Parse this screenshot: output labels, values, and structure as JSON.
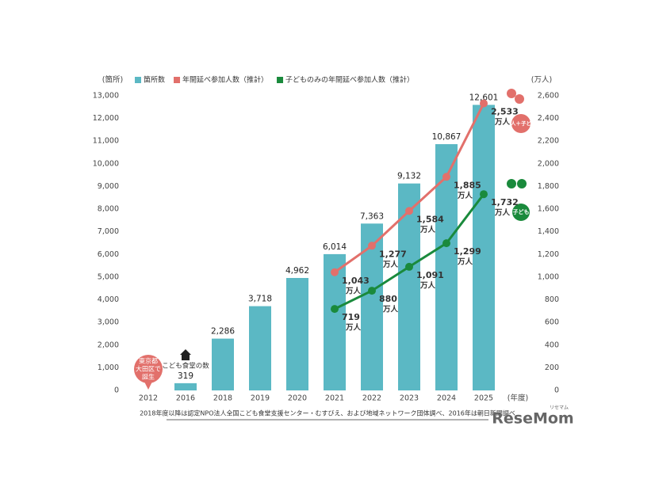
{
  "chart_data": {
    "type": "bar",
    "y_label": "(箇所)",
    "y2_label": "(万人)",
    "x_label": "(年度)",
    "categories": [
      "2012",
      "2016",
      "2018",
      "2019",
      "2020",
      "2021",
      "2022",
      "2023",
      "2024",
      "2025"
    ],
    "series": [
      {
        "name": "箇所数",
        "color": "#5bb8c4",
        "values": [
          null,
          319,
          2286,
          3718,
          4962,
          6014,
          7363,
          9132,
          10867,
          12601
        ],
        "value_labels": [
          null,
          "319",
          "2,286",
          "3,718",
          "4,962",
          "6,014",
          "7,363",
          "9,132",
          "10,867",
          "12,601"
        ]
      },
      {
        "name": "年間延べ参加人数（推計）",
        "type": "line",
        "axis": "y2",
        "color": "#e2706b",
        "values": [
          null,
          null,
          null,
          null,
          null,
          1043,
          1277,
          1584,
          1885,
          2533
        ],
        "value_labels": [
          null,
          null,
          null,
          null,
          null,
          "1,043",
          "1,277",
          "1,584",
          "1,885",
          "2,533"
        ]
      },
      {
        "name": "子どものみの年間延べ参加人数（推計）",
        "type": "line",
        "axis": "y2",
        "color": "#1a8a3c",
        "values": [
          null,
          null,
          null,
          null,
          null,
          719,
          880,
          1091,
          1299,
          1732
        ],
        "value_labels": [
          null,
          null,
          null,
          null,
          null,
          "719",
          "880",
          "1,091",
          "1,299",
          "1,732"
        ]
      }
    ],
    "value_unit": "万人",
    "ylim": [
      0,
      13000
    ],
    "yticks": [
      0,
      {
        "value": 1000,
        "label": "1,000"
      },
      {
        "value": 2000,
        "label": "2,000"
      },
      {
        "value": 3000,
        "label": "3,000"
      },
      {
        "value": 4000,
        "label": "4,000"
      },
      {
        "value": 5000,
        "label": "5,000"
      },
      {
        "value": 6000,
        "label": "6,000"
      },
      {
        "value": 7000,
        "label": "7,000"
      },
      {
        "value": 8000,
        "label": "8,000"
      },
      {
        "value": 9000,
        "label": "9,000"
      },
      {
        "value": 10000,
        "label": "10,000"
      },
      {
        "value": 11000,
        "label": "11,000"
      },
      {
        "value": 12000,
        "label": "12,000"
      },
      {
        "value": 13000,
        "label": "13,000"
      }
    ],
    "y2lim": [
      0,
      2600
    ],
    "y2ticks": [
      0,
      200,
      400,
      600,
      800,
      {
        "value": 1000,
        "label": "1,000"
      },
      {
        "value": 1200,
        "label": "1,200"
      },
      {
        "value": 1400,
        "label": "1,400"
      },
      {
        "value": 1600,
        "label": "1,600"
      },
      {
        "value": 1800,
        "label": "1,800"
      },
      {
        "value": 2000,
        "label": "2,000"
      },
      {
        "value": 2200,
        "label": "2,200"
      },
      {
        "value": 2400,
        "label": "2,400"
      },
      {
        "value": 2600,
        "label": "2,600"
      }
    ],
    "annotations": {
      "birth": [
        "東京都",
        "大田区で",
        "誕生"
      ],
      "count_note": "こども食堂の数",
      "badge_adult": "大人＋子ども",
      "badge_child": "子ども"
    },
    "source": "2018年度以降は認定NPO法人全国こども食堂支援センター・むすびえ、および地域ネットワーク団体調べ、2016年は朝日新聞調べ",
    "logo": "ReseMom",
    "logo_kana": "リセマム"
  }
}
